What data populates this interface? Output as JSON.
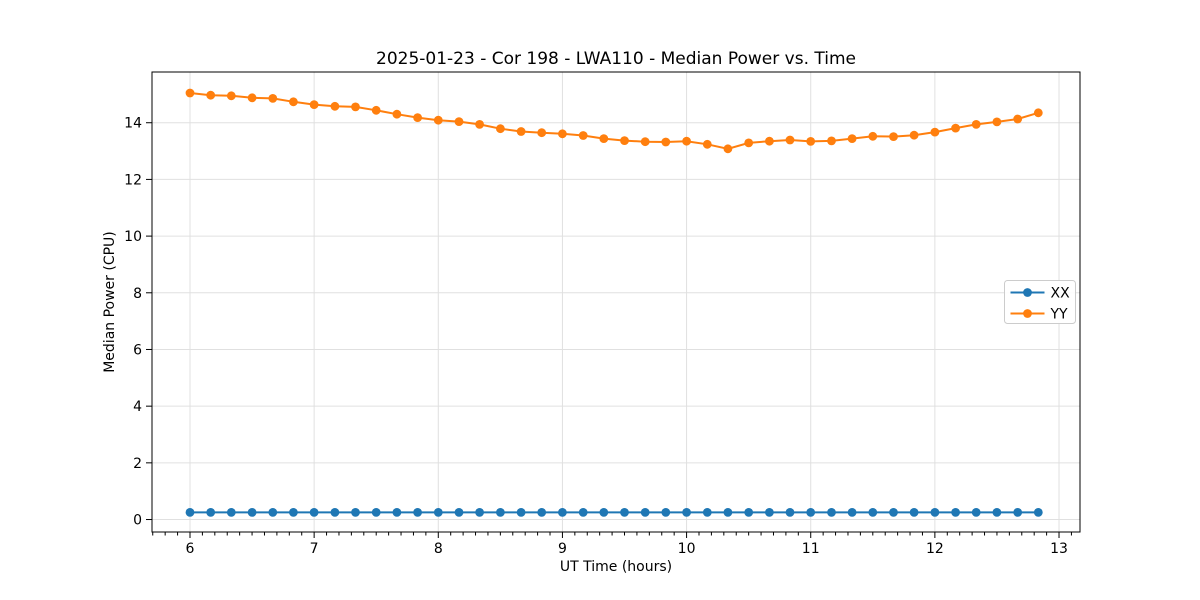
{
  "chart_data": {
    "type": "line",
    "title": "2025-01-23 - Cor 198 - LWA110 - Median Power vs. Time",
    "xlabel": "UT Time (hours)",
    "ylabel": "Median Power (CPU)",
    "xlim": [
      5.694,
      13.169
    ],
    "ylim": [
      -0.44,
      15.79
    ],
    "xticks": [
      6,
      7,
      8,
      9,
      10,
      11,
      12,
      13
    ],
    "yticks": [
      0,
      2,
      4,
      6,
      8,
      10,
      12,
      14
    ],
    "x_minor_step": 0.1,
    "grid": true,
    "legend": {
      "position": "center-right",
      "entries": [
        "XX",
        "YY"
      ]
    },
    "colors": {
      "xx": "#1f77b4",
      "yy": "#ff7f0e",
      "grid": "#e0e0e0",
      "spine": "#000000",
      "text": "#000000",
      "legend_border": "#cccccc"
    },
    "x": [
      6.0,
      6.167,
      6.333,
      6.5,
      6.667,
      6.833,
      7.0,
      7.167,
      7.333,
      7.5,
      7.667,
      7.833,
      8.0,
      8.167,
      8.333,
      8.5,
      8.667,
      8.833,
      9.0,
      9.167,
      9.333,
      9.5,
      9.667,
      9.833,
      10.0,
      10.167,
      10.333,
      10.5,
      10.667,
      10.833,
      11.0,
      11.167,
      11.333,
      11.5,
      11.667,
      11.833,
      12.0,
      12.167,
      12.333,
      12.5,
      12.667,
      12.833
    ],
    "series": [
      {
        "name": "XX",
        "color": "#1f77b4",
        "values": [
          0.25,
          0.25,
          0.25,
          0.25,
          0.25,
          0.25,
          0.25,
          0.25,
          0.25,
          0.25,
          0.25,
          0.25,
          0.25,
          0.25,
          0.25,
          0.25,
          0.25,
          0.25,
          0.25,
          0.25,
          0.25,
          0.25,
          0.25,
          0.25,
          0.25,
          0.25,
          0.25,
          0.25,
          0.25,
          0.25,
          0.25,
          0.25,
          0.25,
          0.25,
          0.25,
          0.25,
          0.25,
          0.25,
          0.25,
          0.25,
          0.25,
          0.25
        ]
      },
      {
        "name": "YY",
        "color": "#ff7f0e",
        "values": [
          15.05,
          14.97,
          14.95,
          14.88,
          14.86,
          14.74,
          14.64,
          14.58,
          14.56,
          14.44,
          14.3,
          14.18,
          14.09,
          14.04,
          13.94,
          13.79,
          13.69,
          13.65,
          13.61,
          13.55,
          13.44,
          13.37,
          13.33,
          13.32,
          13.35,
          13.24,
          13.08,
          13.29,
          13.35,
          13.39,
          13.34,
          13.36,
          13.44,
          13.52,
          13.51,
          13.56,
          13.67,
          13.81,
          13.94,
          14.03,
          14.13,
          14.35
        ]
      }
    ]
  }
}
